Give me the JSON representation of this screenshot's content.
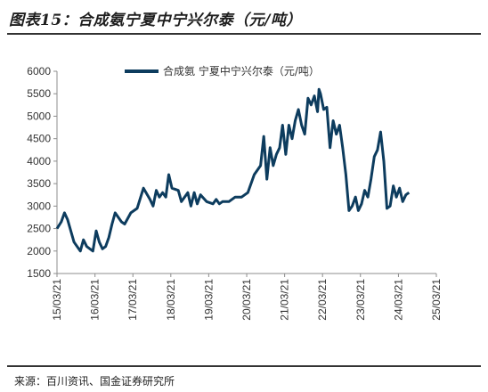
{
  "figure": {
    "title": "图表15：合成氨宁夏中宁兴尔泰（元/吨）",
    "source": "来源：百川资讯、国金证券研究所"
  },
  "colors": {
    "series": "#0d3c5e",
    "axis": "#8c8c8c",
    "text": "#333333"
  },
  "chart_data": {
    "type": "line",
    "title": "",
    "xlabel": "",
    "ylabel": "",
    "ylim": [
      1500,
      6000
    ],
    "y_ticks": [
      "6000",
      "5500",
      "5000",
      "4500",
      "4000",
      "3500",
      "3000",
      "2500",
      "2000",
      "1500"
    ],
    "x_ticks": [
      "15/03/21",
      "16/03/21",
      "17/03/21",
      "18/03/21",
      "19/03/21",
      "20/03/21",
      "21/03/21",
      "22/03/21",
      "23/03/21",
      "24/03/21",
      "25/03/21"
    ],
    "grid": false,
    "legend_position": "top",
    "series": [
      {
        "name": "合成氨 宁夏中宁兴尔泰（元/吨）",
        "x": [
          "2015-03-21",
          "2015-05-01",
          "2015-06-01",
          "2015-07-01",
          "2015-08-01",
          "2015-09-01",
          "2015-10-01",
          "2015-11-01",
          "2015-12-01",
          "2016-01-01",
          "2016-03-01",
          "2016-04-01",
          "2016-05-01",
          "2016-06-01",
          "2016-07-01",
          "2016-08-01",
          "2016-09-01",
          "2016-10-01",
          "2016-12-01",
          "2017-01-01",
          "2017-03-01",
          "2017-05-01",
          "2017-07-01",
          "2017-09-01",
          "2017-10-01",
          "2017-11-01",
          "2017-12-01",
          "2018-01-01",
          "2018-02-01",
          "2018-03-01",
          "2018-04-01",
          "2018-06-01",
          "2018-07-01",
          "2018-08-01",
          "2018-09-01",
          "2018-10-01",
          "2018-11-01",
          "2018-12-01",
          "2019-01-01",
          "2019-03-01",
          "2019-05-01",
          "2019-06-01",
          "2019-07-01",
          "2019-08-01",
          "2019-10-01",
          "2019-12-01",
          "2020-02-01",
          "2020-04-01",
          "2020-06-01",
          "2020-08-01",
          "2020-09-01",
          "2020-10-01",
          "2020-11-01",
          "2020-12-01",
          "2021-01-01",
          "2021-02-01",
          "2021-03-01",
          "2021-04-01",
          "2021-05-01",
          "2021-06-01",
          "2021-07-01",
          "2021-08-01",
          "2021-09-01",
          "2021-10-01",
          "2021-11-01",
          "2021-12-01",
          "2022-01-01",
          "2022-02-01",
          "2022-02-15",
          "2022-03-01",
          "2022-04-01",
          "2022-05-01",
          "2022-06-01",
          "2022-07-01",
          "2022-08-01",
          "2022-09-01",
          "2022-10-01",
          "2022-11-01",
          "2022-12-01",
          "2023-01-01",
          "2023-02-01",
          "2023-03-01",
          "2023-04-01",
          "2023-05-01",
          "2023-06-01",
          "2023-07-01",
          "2023-08-01",
          "2023-09-01",
          "2023-10-01",
          "2023-11-01",
          "2023-12-01",
          "2024-01-01",
          "2024-02-01",
          "2024-03-01",
          "2024-04-01",
          "2024-05-01",
          "2024-06-01",
          "2024-07-01"
        ],
        "values": [
          2500,
          2650,
          2850,
          2700,
          2450,
          2200,
          2100,
          2000,
          2250,
          2100,
          2000,
          2450,
          2200,
          2050,
          2100,
          2300,
          2600,
          2850,
          2650,
          2600,
          2850,
          2950,
          3400,
          3150,
          3000,
          3350,
          3200,
          3300,
          3200,
          3700,
          3400,
          3350,
          3100,
          3200,
          3300,
          3000,
          3300,
          3050,
          3250,
          3100,
          3050,
          3150,
          3050,
          3100,
          3100,
          3200,
          3200,
          3300,
          3700,
          3900,
          4550,
          3600,
          4300,
          3900,
          4150,
          4300,
          4800,
          4150,
          4800,
          4500,
          4900,
          5150,
          4800,
          4600,
          5400,
          5250,
          5450,
          5100,
          5600,
          5500,
          5150,
          5200,
          4300,
          4900,
          4600,
          4800,
          4300,
          3700,
          2900,
          3000,
          3200,
          2900,
          3050,
          3350,
          3200,
          3600,
          4100,
          4250,
          4650,
          4000,
          2950,
          3000,
          3450,
          3200,
          3400,
          3100,
          3250,
          3300
        ]
      }
    ]
  }
}
